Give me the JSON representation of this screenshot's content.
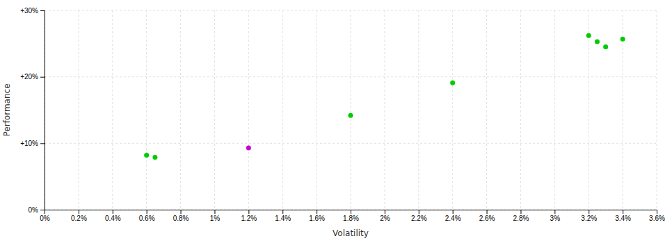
{
  "chart_data": {
    "type": "scatter",
    "xlabel": "Volatility",
    "ylabel": "Performance",
    "xlim": [
      0.0,
      0.036
    ],
    "ylim": [
      0.0,
      0.3
    ],
    "xticks": [
      {
        "value": 0.0,
        "label": "0%"
      },
      {
        "value": 0.002,
        "label": "0.2%"
      },
      {
        "value": 0.004,
        "label": "0.4%"
      },
      {
        "value": 0.006,
        "label": "0.6%"
      },
      {
        "value": 0.008,
        "label": "0.8%"
      },
      {
        "value": 0.01,
        "label": "1%"
      },
      {
        "value": 0.012,
        "label": "1.2%"
      },
      {
        "value": 0.014,
        "label": "1.4%"
      },
      {
        "value": 0.016,
        "label": "1.6%"
      },
      {
        "value": 0.018,
        "label": "1.8%"
      },
      {
        "value": 0.02,
        "label": "2%"
      },
      {
        "value": 0.022,
        "label": "2.2%"
      },
      {
        "value": 0.024,
        "label": "2.4%"
      },
      {
        "value": 0.026,
        "label": "2.6%"
      },
      {
        "value": 0.028,
        "label": "2.8%"
      },
      {
        "value": 0.03,
        "label": "3%"
      },
      {
        "value": 0.032,
        "label": "3.2%"
      },
      {
        "value": 0.034,
        "label": "3.4%"
      },
      {
        "value": 0.036,
        "label": "3.6%"
      }
    ],
    "yticks": [
      {
        "value": 0.0,
        "label": "0%"
      },
      {
        "value": 0.1,
        "label": "+10%"
      },
      {
        "value": 0.2,
        "label": "+20%"
      },
      {
        "value": 0.3,
        "label": "+30%"
      }
    ],
    "grid": true,
    "series": [
      {
        "color": "#00cc00",
        "x": [
          0.006,
          0.0065,
          0.018,
          0.024,
          0.032,
          0.0325,
          0.033,
          0.034
        ],
        "values": [
          0.082,
          0.079,
          0.142,
          0.191,
          0.262,
          0.253,
          0.245,
          0.257
        ]
      },
      {
        "color": "#cc00cc",
        "x": [
          0.012
        ],
        "values": [
          0.093
        ]
      }
    ]
  }
}
